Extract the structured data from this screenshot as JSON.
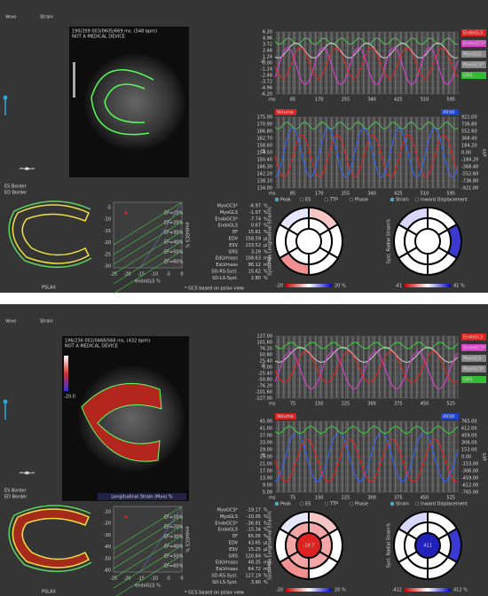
{
  "panels": [
    {
      "header": {
        "brand": "Vevo",
        "product": "Strain"
      },
      "image": {
        "frame_info": "190/209 003/0605/669 ms. (548 bpm)",
        "warning": "NOT A MEDICAL DEVICE"
      },
      "border_legend": [
        "ES Border",
        "ED Border"
      ],
      "view_label": "PSLAX",
      "strain_chart": {
        "y_unit": "%",
        "yticks": [
          "6.20",
          "4.96",
          "3.72",
          "2.48",
          "1.24",
          "0.00",
          "-1.24",
          "-2.48",
          "-3.72",
          "-4.96",
          "-6.20"
        ],
        "x_unit": "ms",
        "xticks": [
          85,
          170,
          255,
          340,
          425,
          510,
          595
        ],
        "legend": [
          "EndoGLS",
          "EndoGCS*",
          "MyoGLS",
          "MyoGCS*",
          "GRS"
        ]
      },
      "volume_chart": {
        "y_unit": "µl",
        "y2_unit": "µl/s",
        "yticks": [
          "175.00",
          "170.90",
          "166.80",
          "162.70",
          "158.60",
          "154.50",
          "150.40",
          "146.30",
          "142.20",
          "138.10",
          "134.00"
        ],
        "y2ticks": [
          "921.00",
          "736.80",
          "552.60",
          "368.40",
          "184.20",
          "0.00",
          "-184.20",
          "-368.40",
          "-552.60",
          "-736.80",
          "-921.00"
        ],
        "x_unit": "ms",
        "xticks": [
          85,
          170,
          255,
          340,
          425,
          510,
          595
        ],
        "legend": [
          "Volume",
          "dV/dt"
        ]
      },
      "options": [
        "Peak",
        "ES",
        "TTP",
        "Phase",
        "Strain",
        "Inward Displacement"
      ],
      "measurements": [
        [
          "MyoGCS*",
          "-6.97",
          "%"
        ],
        [
          "MyoGLS",
          "-1.07",
          "%"
        ],
        [
          "EndoGCS*",
          "-7.74",
          "%"
        ],
        [
          "EndoGLS",
          "0.67",
          "%"
        ],
        [
          "EF",
          "15.81",
          "%"
        ],
        [
          "EDV",
          "158.59",
          "µl"
        ],
        [
          "ESV",
          "133.52",
          "µl"
        ],
        [
          "GRS",
          "3.29",
          "%"
        ],
        [
          "EdLVmass",
          "108.63",
          "mg"
        ],
        [
          "EsLVmass",
          "96.12",
          "mg"
        ],
        [
          "SD-RS-Syst.",
          "15.62",
          "%"
        ],
        [
          "SD-LS-Syst.",
          "2.80",
          "%"
        ]
      ],
      "ef_plot": {
        "y_label": "endoGCS %",
        "x_label": "endoGLS %",
        "yticks": [
          -5,
          -10,
          -15,
          -20,
          -25,
          -30
        ],
        "xticks": [
          -25,
          -20,
          -15,
          -10,
          -5,
          0
        ],
        "ef_lines": [
          "EF=10%",
          "EF=20%",
          "EF=30%",
          "EF=40%",
          "EF=50%",
          "EF=60%"
        ]
      },
      "footnote": "* GCS based on pslax view",
      "bullseyes": [
        {
          "title": "Syst. Myo Longitudinal Strain%",
          "scale": [
            "-20",
            "20 %"
          ]
        },
        {
          "title": "Syst. Radial Strain%",
          "scale": [
            "-41",
            "41 %"
          ]
        }
      ]
    },
    {
      "header": {
        "brand": "Vevo",
        "product": "Strain"
      },
      "image": {
        "frame_info": "196/236 002/0468/566 ms. (432 bpm)",
        "warning": "NOT A MEDICAL DEVICE",
        "caption": "Longitudinal Strain (Myo) %",
        "colorbar_label": "-20.0"
      },
      "border_legend": [
        "ES Border",
        "ED Border"
      ],
      "view_label": "PSLAX",
      "strain_chart": {
        "y_unit": "%",
        "yticks": [
          "127.00",
          "101.60",
          "76.20",
          "50.80",
          "25.40",
          "0.00",
          "-25.40",
          "-50.80",
          "-76.20",
          "-101.60",
          "-127.00"
        ],
        "x_unit": "ms",
        "xticks": [
          75,
          150,
          225,
          300,
          375,
          450,
          525
        ],
        "legend": [
          "EndoGLS",
          "EndoGCS*",
          "MyoGLS",
          "MyoGCS*",
          "GRS"
        ]
      },
      "volume_chart": {
        "y_unit": "µl",
        "y2_unit": "µl/s",
        "yticks": [
          "45.00",
          "41.00",
          "37.00",
          "33.00",
          "29.00",
          "25.00",
          "21.00",
          "17.00",
          "13.00",
          "9.00",
          "5.00"
        ],
        "y2ticks": [
          "765.00",
          "612.00",
          "459.00",
          "306.00",
          "153.00",
          "0.00",
          "-153.00",
          "-306.00",
          "-459.00",
          "-612.00",
          "-765.00"
        ],
        "x_unit": "ms",
        "xticks": [
          75,
          150,
          225,
          300,
          375,
          450,
          525
        ],
        "legend": [
          "Volume",
          "dV/dt"
        ]
      },
      "options": [
        "Peak",
        "ES",
        "TTP",
        "Phase",
        "Strain",
        "Inward Displacement"
      ],
      "measurements": [
        [
          "MyoGCS*",
          "-19.17",
          "%"
        ],
        [
          "MyoGLS",
          "-10.05",
          "%"
        ],
        [
          "EndoGCS*",
          "-36.91",
          "%"
        ],
        [
          "EndoGLS",
          "-15.34",
          "%"
        ],
        [
          "EF",
          "65.05",
          "%"
        ],
        [
          "EDV",
          "43.65",
          "µl"
        ],
        [
          "ESV",
          "15.25",
          "µl"
        ],
        [
          "GRS",
          "120.84",
          "%"
        ],
        [
          "EdLVmass",
          "48.35",
          "mg"
        ],
        [
          "EsLVmass",
          "64.72",
          "mg"
        ],
        [
          "SD-RS-Syst.",
          "127.19",
          "%"
        ],
        [
          "SD-LS-Syst.",
          "3.90",
          "%"
        ]
      ],
      "ef_plot": {
        "y_label": "endoGCS %",
        "x_label": "endoGLS %",
        "yticks": [
          -10,
          -20,
          -30,
          -40,
          -50,
          -60
        ],
        "xticks": [
          -25,
          -20,
          -15,
          -10,
          -5,
          0
        ],
        "ef_lines": [
          "EF=10%",
          "EF=20%",
          "EF=30%",
          "EF=40%",
          "EF=50%",
          "EF=60%"
        ]
      },
      "footnote": "* GCS based on pslax view",
      "bullseyes": [
        {
          "title": "Syst. Myo Longitudinal Strain%",
          "scale": [
            "-20",
            "20 %"
          ],
          "center": "-19.7"
        },
        {
          "title": "Syst. Radial Strain%",
          "scale": [
            "-412",
            "412 %"
          ],
          "center": "411"
        }
      ]
    }
  ]
}
